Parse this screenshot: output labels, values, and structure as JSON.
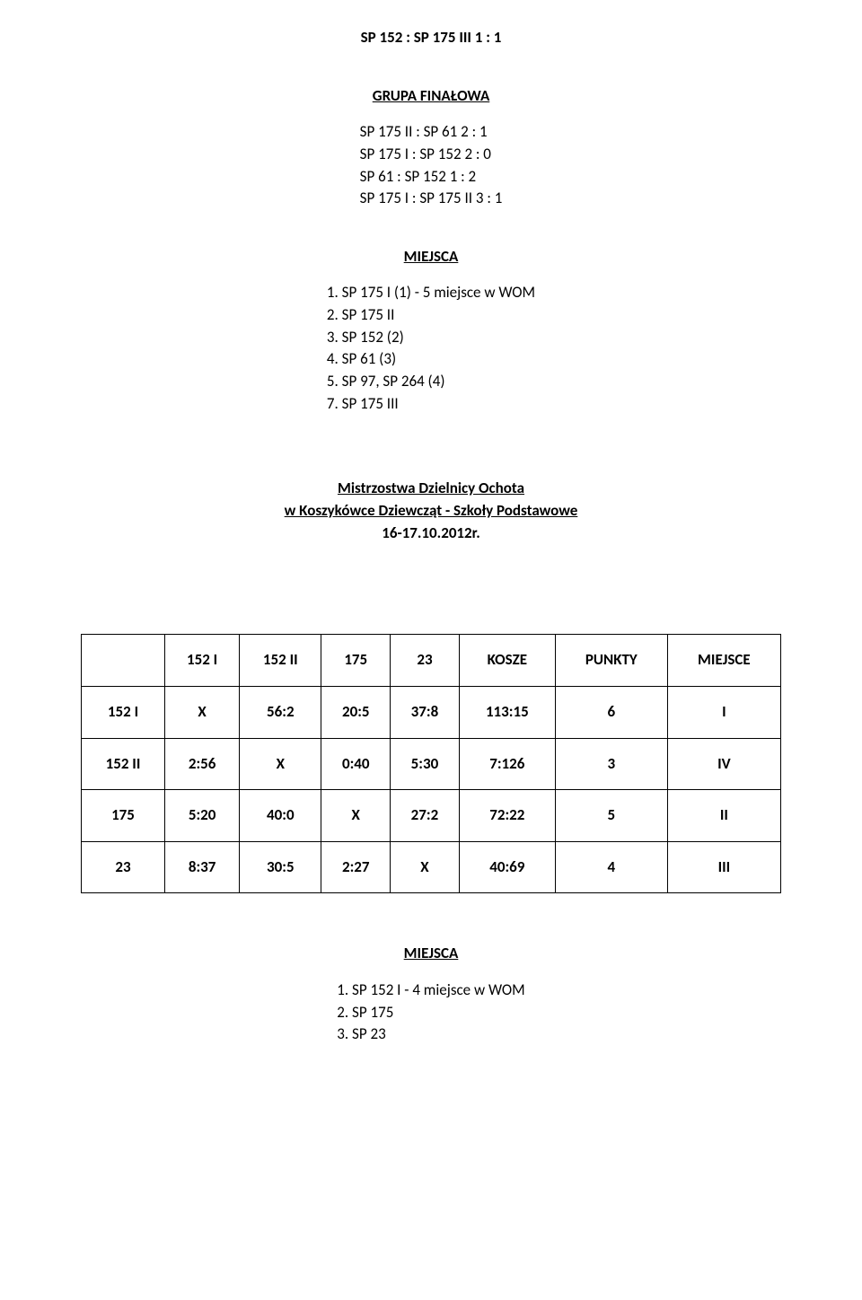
{
  "header_score": "SP 152 : SP 175 III     1 : 1",
  "group_title": "GRUPA FINAŁOWA",
  "group_scores": [
    "SP 175 II : SP 61    2 : 1",
    "SP 175 I : SP 152    2 : 0",
    "SP 61 : SP 152     1 : 2",
    "SP 175 I : SP 175 II   3 : 1"
  ],
  "places_title": "MIEJSCA",
  "places": [
    "1. SP 175 I  (1) - 5 miejsce w WOM",
    "2. SP 175 II",
    "3. SP 152    (2)",
    "4. SP 61     (3)",
    "5. SP 97, SP 264  (4)",
    "7. SP 175 III"
  ],
  "championship": {
    "line1": "Mistrzostwa Dzielnicy Ochota",
    "line2": "w Koszykówce Dziewcząt - Szkoły Podstawowe",
    "line3": "16-17.10.2012r."
  },
  "table": {
    "columns": [
      "",
      "152 I",
      "152 II",
      "175",
      "23",
      "KOSZE",
      "PUNKTY",
      "MIEJSCE"
    ],
    "rows": [
      [
        "152 I",
        "X",
        "56:2",
        "20:5",
        "37:8",
        "113:15",
        "6",
        "I"
      ],
      [
        "152 II",
        "2:56",
        "X",
        "0:40",
        "5:30",
        "7:126",
        "3",
        "IV"
      ],
      [
        "175",
        "5:20",
        "40:0",
        "X",
        "27:2",
        "72:22",
        "5",
        "II"
      ],
      [
        "23",
        "8:37",
        "30:5",
        "2:27",
        "X",
        "40:69",
        "4",
        "III"
      ]
    ]
  },
  "places2_title": "MIEJSCA",
  "places2": [
    "1. SP 152 I - 4 miejsce w WOM",
    "2. SP 175",
    "3. SP 23"
  ]
}
